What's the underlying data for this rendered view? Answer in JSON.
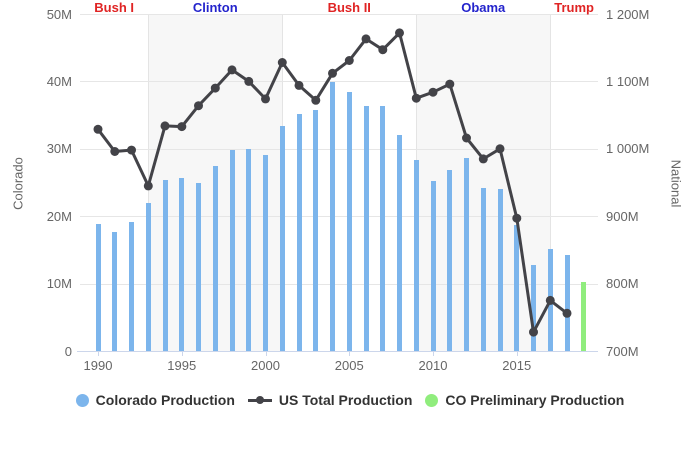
{
  "chart_data": {
    "type": "combo-bar-line",
    "x": [
      1990,
      1991,
      1992,
      1993,
      1994,
      1995,
      1996,
      1997,
      1998,
      1999,
      2000,
      2001,
      2002,
      2003,
      2004,
      2005,
      2006,
      2007,
      2008,
      2009,
      2010,
      2011,
      2012,
      2013,
      2014,
      2015,
      2016,
      2017,
      2018
    ],
    "series": [
      {
        "name": "Colorado Production",
        "type": "bar",
        "axis": "left",
        "color": "#7cb5ec",
        "values": [
          18.9,
          17.6,
          19.2,
          21.9,
          25.3,
          25.7,
          24.9,
          27.4,
          29.8,
          29.9,
          29.1,
          33.4,
          35.1,
          35.8,
          39.9,
          38.5,
          36.3,
          36.4,
          32.0,
          28.3,
          25.2,
          26.9,
          28.6,
          24.2,
          24.0,
          18.7,
          12.8,
          15.1,
          14.3
        ]
      },
      {
        "name": "US Total Production",
        "type": "line",
        "axis": "right",
        "color": "#434348",
        "values": [
          1029,
          996,
          998,
          945,
          1034,
          1033,
          1064,
          1090,
          1117,
          1100,
          1074,
          1128,
          1094,
          1072,
          1112,
          1131,
          1163,
          1147,
          1172,
          1075,
          1084,
          1096,
          1016,
          985,
          1000,
          897,
          728,
          775,
          756
        ]
      },
      {
        "name": "CO Preliminary Production",
        "type": "bar",
        "axis": "left",
        "color": "#90ed7d",
        "x": [
          2019
        ],
        "values": [
          10.3
        ]
      }
    ],
    "left_axis": {
      "title": "Colorado",
      "min": 0,
      "max": 50,
      "tick_values": [
        0,
        10,
        20,
        30,
        40,
        50
      ],
      "tick_labels": [
        "0",
        "10M",
        "20M",
        "30M",
        "40M",
        "50M"
      ]
    },
    "right_axis": {
      "title": "National",
      "min": 700,
      "max": 1200,
      "tick_values": [
        700,
        800,
        900,
        1000,
        1100,
        1200
      ],
      "tick_labels": [
        "700M",
        "800M",
        "900M",
        "1 000M",
        "1 100M",
        "1 200M"
      ]
    },
    "x_axis": {
      "tick_years": [
        1990,
        1995,
        2000,
        2005,
        2010,
        2015
      ],
      "tick_labels": [
        "1990",
        "1995",
        "2000",
        "2005",
        "2010",
        "2015"
      ]
    },
    "era_bands": [
      {
        "label": "Bush I",
        "color": "#e02424",
        "start": null,
        "end": 1993,
        "shaded": false
      },
      {
        "label": "Clinton",
        "color": "#2424cc",
        "start": 1993,
        "end": 2001,
        "shaded": true
      },
      {
        "label": "Bush II",
        "color": "#e02424",
        "start": 2001,
        "end": 2009,
        "shaded": false
      },
      {
        "label": "Obama",
        "color": "#2424cc",
        "start": 2009,
        "end": 2017,
        "shaded": true
      },
      {
        "label": "Trump",
        "color": "#e02424",
        "start": 2017,
        "end": null,
        "shaded": false
      }
    ],
    "legend": [
      {
        "label": "Colorado Production",
        "marker": "circle",
        "color": "#7cb5ec"
      },
      {
        "label": "US Total Production",
        "marker": "line-dot",
        "color": "#434348"
      },
      {
        "label": "CO Preliminary Production",
        "marker": "circle",
        "color": "#90ed7d"
      }
    ],
    "grid": true,
    "colors": {
      "gridline": "#e6e6e6",
      "axis_line": "#ccd6eb",
      "band_fill": "#f7f7f7",
      "tick_label": "#666666",
      "legend_text": "#333333"
    }
  }
}
